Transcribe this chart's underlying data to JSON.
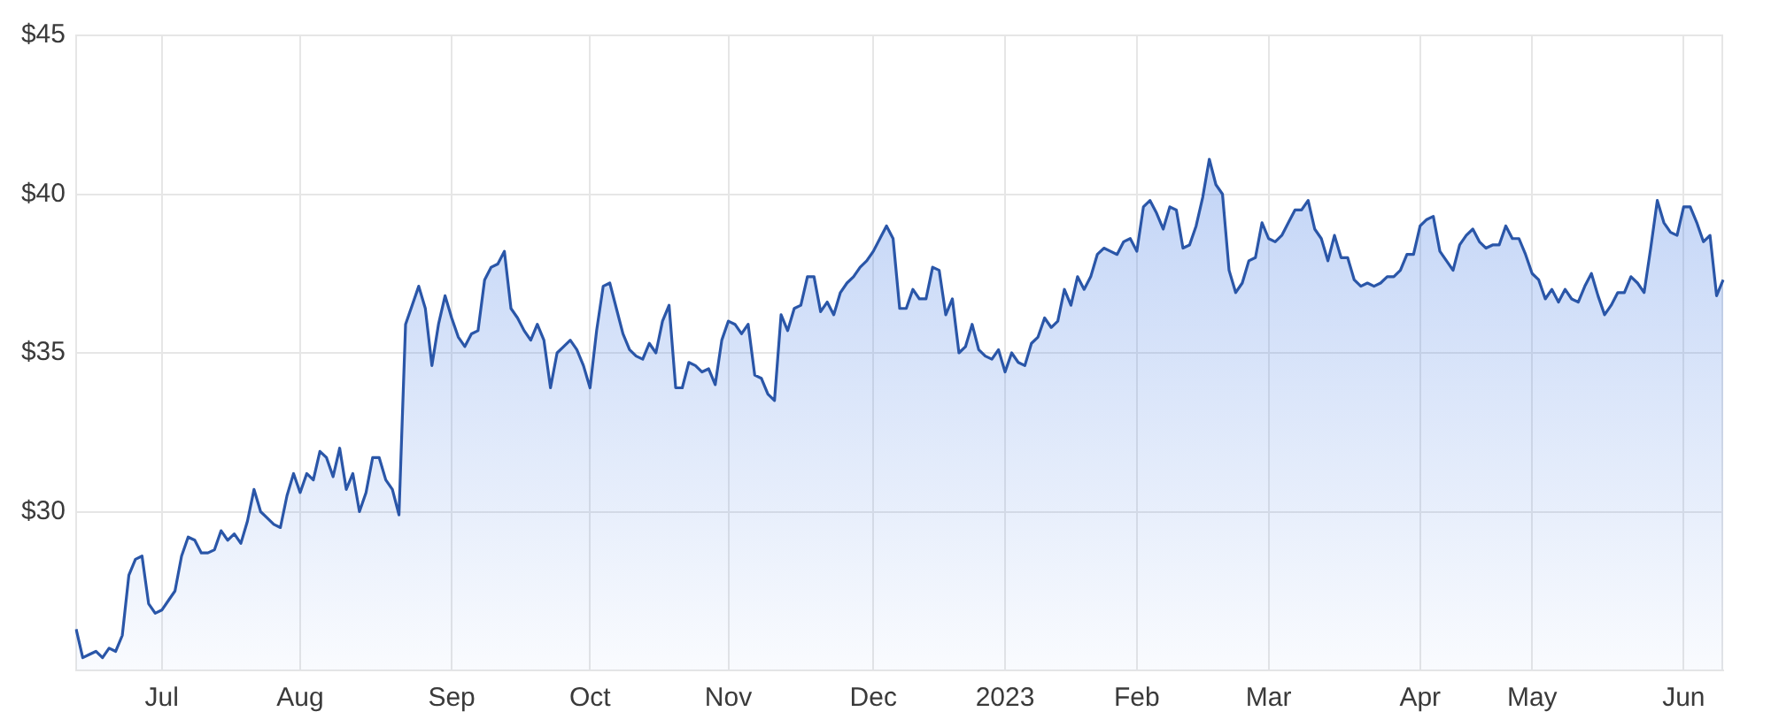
{
  "chart_data": {
    "type": "area",
    "categories": [
      null,
      null,
      null,
      null,
      null,
      null,
      null,
      null,
      null,
      null,
      null,
      null,
      null,
      "Jul",
      null,
      null,
      null,
      null,
      null,
      null,
      null,
      null,
      null,
      null,
      null,
      null,
      null,
      null,
      null,
      null,
      null,
      null,
      null,
      null,
      "Aug",
      null,
      null,
      null,
      null,
      null,
      null,
      null,
      null,
      null,
      null,
      null,
      null,
      null,
      null,
      null,
      null,
      null,
      null,
      null,
      null,
      null,
      null,
      "Sep",
      null,
      null,
      null,
      null,
      null,
      null,
      null,
      null,
      null,
      null,
      null,
      null,
      null,
      null,
      null,
      null,
      null,
      null,
      null,
      null,
      "Oct",
      null,
      null,
      null,
      null,
      null,
      null,
      null,
      null,
      null,
      null,
      null,
      null,
      null,
      null,
      null,
      null,
      null,
      null,
      null,
      null,
      "Nov",
      null,
      null,
      null,
      null,
      null,
      null,
      null,
      null,
      null,
      null,
      null,
      null,
      null,
      null,
      null,
      null,
      null,
      null,
      null,
      null,
      null,
      "Dec",
      null,
      null,
      null,
      null,
      null,
      null,
      null,
      null,
      null,
      null,
      null,
      null,
      null,
      null,
      null,
      null,
      null,
      null,
      null,
      "2023",
      null,
      null,
      null,
      null,
      null,
      null,
      null,
      null,
      null,
      null,
      null,
      null,
      null,
      null,
      null,
      null,
      null,
      null,
      null,
      "Feb",
      null,
      null,
      null,
      null,
      null,
      null,
      null,
      null,
      null,
      null,
      null,
      null,
      null,
      null,
      null,
      null,
      null,
      null,
      null,
      "Mar",
      null,
      null,
      null,
      null,
      null,
      null,
      null,
      null,
      null,
      null,
      null,
      null,
      null,
      null,
      null,
      null,
      null,
      null,
      null,
      null,
      null,
      null,
      "Apr",
      null,
      null,
      null,
      null,
      null,
      null,
      null,
      null,
      null,
      null,
      null,
      null,
      null,
      null,
      null,
      null,
      "May",
      null,
      null,
      null,
      null,
      null,
      null,
      null,
      null,
      null,
      null,
      null,
      null,
      null,
      null,
      null,
      null,
      null,
      null,
      null,
      null,
      null,
      null,
      "Jun",
      null,
      null,
      null,
      null,
      null,
      null
    ],
    "values": [
      26.3,
      25.4,
      25.5,
      25.6,
      25.4,
      25.7,
      25.6,
      26.1,
      28.0,
      28.5,
      28.6,
      27.1,
      26.8,
      26.9,
      27.2,
      27.5,
      28.6,
      29.2,
      29.1,
      28.7,
      28.7,
      28.8,
      29.4,
      29.1,
      29.3,
      29.0,
      29.7,
      30.7,
      30.0,
      29.8,
      29.6,
      29.5,
      30.5,
      31.2,
      30.6,
      31.2,
      31.0,
      31.9,
      31.7,
      31.1,
      32.0,
      30.7,
      31.2,
      30.0,
      30.6,
      31.7,
      31.7,
      31.0,
      30.7,
      29.9,
      35.9,
      36.5,
      37.1,
      36.4,
      34.6,
      35.9,
      36.8,
      36.1,
      35.5,
      35.2,
      35.6,
      35.7,
      37.3,
      37.7,
      37.8,
      38.2,
      36.4,
      36.1,
      35.7,
      35.4,
      35.9,
      35.4,
      33.9,
      35.0,
      35.2,
      35.4,
      35.1,
      34.6,
      33.9,
      35.7,
      37.1,
      37.2,
      36.4,
      35.6,
      35.1,
      34.9,
      34.8,
      35.3,
      35.0,
      36.0,
      36.5,
      33.9,
      33.9,
      34.7,
      34.6,
      34.4,
      34.5,
      34.0,
      35.4,
      36.0,
      35.9,
      35.6,
      35.9,
      34.3,
      34.2,
      33.7,
      33.5,
      36.2,
      35.7,
      36.4,
      36.5,
      37.4,
      37.4,
      36.3,
      36.6,
      36.2,
      36.9,
      37.2,
      37.4,
      37.7,
      37.9,
      38.2,
      38.6,
      39.0,
      38.6,
      36.4,
      36.4,
      37.0,
      36.7,
      36.7,
      37.7,
      37.6,
      36.2,
      36.7,
      35.0,
      35.2,
      35.9,
      35.1,
      34.9,
      34.8,
      35.1,
      34.4,
      35.0,
      34.7,
      34.6,
      35.3,
      35.5,
      36.1,
      35.8,
      36.0,
      37.0,
      36.5,
      37.4,
      37.0,
      37.4,
      38.1,
      38.3,
      38.2,
      38.1,
      38.5,
      38.6,
      38.2,
      39.6,
      39.8,
      39.4,
      38.9,
      39.6,
      39.5,
      38.3,
      38.4,
      39.0,
      39.9,
      41.1,
      40.3,
      40.0,
      37.6,
      36.9,
      37.2,
      37.9,
      38.0,
      39.1,
      38.6,
      38.5,
      38.7,
      39.1,
      39.5,
      39.5,
      39.8,
      38.9,
      38.6,
      37.9,
      38.7,
      38.0,
      38.0,
      37.3,
      37.1,
      37.2,
      37.1,
      37.2,
      37.4,
      37.4,
      37.6,
      38.1,
      38.1,
      39.0,
      39.2,
      39.3,
      38.2,
      37.9,
      37.6,
      38.4,
      38.7,
      38.9,
      38.5,
      38.3,
      38.4,
      38.4,
      39.0,
      38.6,
      38.6,
      38.1,
      37.5,
      37.3,
      36.7,
      37.0,
      36.6,
      37.0,
      36.7,
      36.6,
      37.1,
      37.5,
      36.8,
      36.2,
      36.5,
      36.9,
      36.9,
      37.4,
      37.2,
      36.9,
      38.3,
      39.8,
      39.1,
      38.8,
      38.7,
      39.6,
      39.6,
      39.1,
      38.5,
      38.7,
      36.8,
      37.3
    ],
    "color": "#2a56a8",
    "ylim": [
      25,
      45
    ],
    "yticks": [
      {
        "value": 30,
        "label": "$30"
      },
      {
        "value": 35,
        "label": "$35"
      },
      {
        "value": 40,
        "label": "$40"
      },
      {
        "value": 45,
        "label": "$45"
      }
    ],
    "grid": true,
    "marker": "none"
  }
}
